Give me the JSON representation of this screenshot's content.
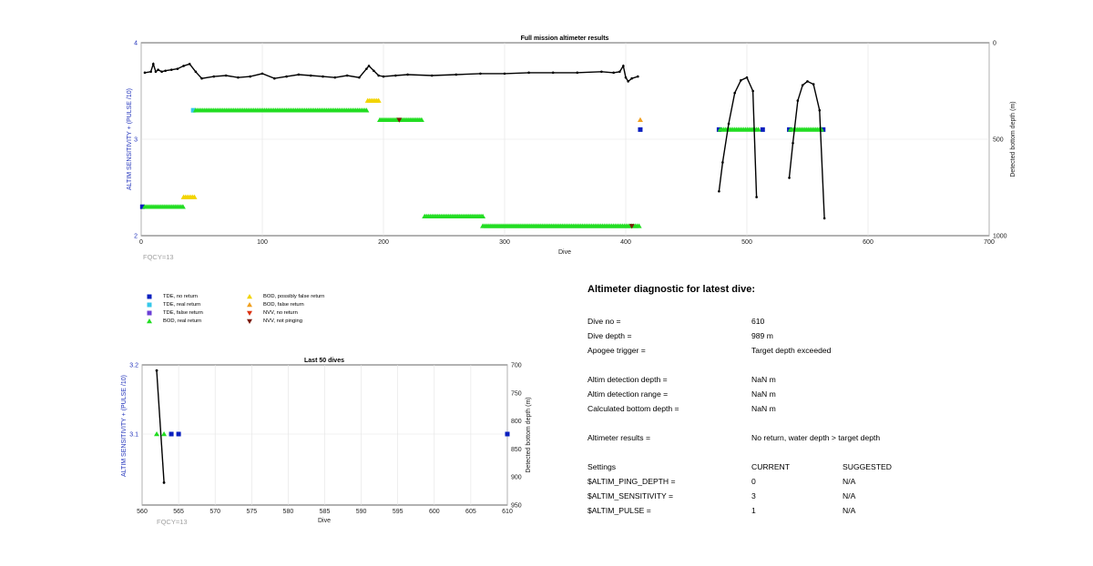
{
  "main_plot": {
    "title": "Full mission altimeter results",
    "ylabel_left": "ALTIM SENSITIVITY + (PULSE /10)",
    "ylabel_right": "Detected bottom depth (m)",
    "xlabel": "Dive",
    "x_ticks": [
      "0",
      "100",
      "200",
      "300",
      "400",
      "500",
      "600",
      "700"
    ],
    "y_left_ticks": [
      "4",
      "3",
      "2"
    ],
    "y_right_ticks": [
      "0",
      "500",
      "1000"
    ],
    "fqcy": "FQCY=13"
  },
  "last50_plot": {
    "title": "Last 50 dives",
    "ylabel_left": "ALTIM SENSITIVITY + (PULSE /10)",
    "ylabel_right": "Detected bottom depth (m)",
    "xlabel": "Dive",
    "x_ticks": [
      "560",
      "565",
      "570",
      "575",
      "580",
      "585",
      "590",
      "595",
      "600",
      "605",
      "610"
    ],
    "y_left_ticks": [
      "3.2",
      "3.1"
    ],
    "y_right_ticks": [
      "700",
      "750",
      "800",
      "850",
      "900",
      "950"
    ],
    "fqcy": "FQCY=13"
  },
  "legend": {
    "items": [
      {
        "label": "TDE, no return",
        "symbol": "square",
        "color": "#0a1fbf"
      },
      {
        "label": "TDE, real return",
        "symbol": "square",
        "color": "#36c8ea"
      },
      {
        "label": "TDE, false return",
        "symbol": "square",
        "color": "#6b3fd6"
      },
      {
        "label": "BOD, real return",
        "symbol": "triangle-up",
        "color": "#22dd22"
      },
      {
        "label": "BOD, possibly false return",
        "symbol": "triangle-up",
        "color": "#f2d400"
      },
      {
        "label": "BOD, false return",
        "symbol": "triangle-up",
        "color": "#f0a020"
      },
      {
        "label": "NVV, no return",
        "symbol": "triangle-down",
        "color": "#dd3311"
      },
      {
        "label": "NVV, not pinging",
        "symbol": "triangle-down",
        "color": "#7a1a0a"
      }
    ]
  },
  "diagnostic": {
    "title": "Altimeter diagnostic for latest dive:",
    "rows": [
      {
        "label": "Dive no =",
        "value": "610",
        "suggested": ""
      },
      {
        "label": "Dive depth =",
        "value": "989 m",
        "suggested": ""
      },
      {
        "label": "Apogee trigger =",
        "value": "Target depth exceeded",
        "suggested": ""
      },
      {
        "label": "",
        "value": "",
        "suggested": ""
      },
      {
        "label": "Altim detection depth =",
        "value": "NaN m",
        "suggested": ""
      },
      {
        "label": "Altim detection range =",
        "value": "NaN m",
        "suggested": ""
      },
      {
        "label": "Calculated bottom depth =",
        "value": "NaN m",
        "suggested": ""
      },
      {
        "label": "",
        "value": "",
        "suggested": ""
      },
      {
        "label": "Altimeter results =",
        "value": "No return, water depth > target depth",
        "suggested": ""
      },
      {
        "label": "",
        "value": "",
        "suggested": ""
      },
      {
        "label": "Settings",
        "value": "CURRENT",
        "suggested": "SUGGESTED"
      },
      {
        "label": "$ALTIM_PING_DEPTH =",
        "value": "0",
        "suggested": "N/A"
      },
      {
        "label": "$ALTIM_SENSITIVITY =",
        "value": "3",
        "suggested": "N/A"
      },
      {
        "label": "$ALTIM_PULSE =",
        "value": "1",
        "suggested": "N/A"
      }
    ]
  },
  "chart_data": [
    {
      "type": "scatter",
      "title": "Full mission altimeter results",
      "xlabel": "Dive",
      "ylabel": "ALTIM SENSITIVITY + (PULSE /10)",
      "ylabel_right": "Detected bottom depth (m)",
      "xlim": [
        0,
        700
      ],
      "ylim": [
        2,
        4
      ],
      "ylim_right": [
        0,
        1000
      ],
      "right_axis_reversed": true,
      "grid": true,
      "bottom_depth_trace": {
        "name": "Detected bottom depth (m)",
        "segments": [
          {
            "x": [
              3,
              8,
              10,
              12,
              14,
              17,
              20,
              25,
              30,
              35,
              40,
              45,
              50,
              60,
              70,
              80,
              90,
              100,
              110,
              120,
              130,
              140,
              150,
              160,
              170,
              180,
              186,
              188,
              192,
              196,
              200,
              210,
              220,
              240,
              260,
              280,
              300,
              320,
              340,
              360,
              380,
              390,
              395,
              398,
              400,
              402,
              405,
              410
            ],
            "y": [
              155,
              150,
              110,
              150,
              140,
              150,
              145,
              140,
              135,
              120,
              110,
              150,
              185,
              175,
              170,
              180,
              175,
              160,
              185,
              175,
              165,
              170,
              175,
              180,
              170,
              180,
              135,
              120,
              145,
              170,
              175,
              170,
              165,
              170,
              165,
              160,
              160,
              155,
              155,
              155,
              150,
              155,
              150,
              120,
              180,
              200,
              185,
              175
            ]
          },
          {
            "x": [
              477,
              480,
              485,
              490,
              495,
              500,
              505,
              508
            ],
            "y": [
              770,
              620,
              420,
              260,
              195,
              180,
              250,
              800
            ]
          },
          {
            "x": [
              535,
              538,
              542,
              546,
              550,
              555,
              560,
              564
            ],
            "y": [
              700,
              520,
              300,
              220,
              200,
              215,
              350,
              910
            ]
          }
        ]
      },
      "markers": [
        {
          "series": "TDE, no return",
          "x": [
            1,
            412,
            477,
            513,
            535,
            563
          ],
          "y": [
            2.3,
            3.1,
            3.1,
            3.1,
            3.1,
            3.1
          ]
        },
        {
          "series": "TDE, real return",
          "x": [
            43
          ],
          "y": [
            3.3
          ]
        },
        {
          "series": "BOD, real return",
          "segments": [
            {
              "x": [
                3,
                35
              ],
              "y": 2.3
            },
            {
              "x": [
                45,
                187
              ],
              "y": 3.3
            },
            {
              "x": [
                197,
                232
              ],
              "y": 3.2
            },
            {
              "x": [
                234,
                282
              ],
              "y": 2.2
            },
            {
              "x": [
                282,
                412
              ],
              "y": 2.1
            },
            {
              "x": [
                478,
                510
              ],
              "y": 3.1
            },
            {
              "x": [
                536,
                562
              ],
              "y": 3.1
            }
          ]
        },
        {
          "series": "BOD, possibly false return",
          "segments": [
            {
              "x": [
                35,
                44
              ],
              "y": 2.4
            },
            {
              "x": [
                187,
                196
              ],
              "y": 3.4
            }
          ]
        },
        {
          "series": "BOD, false return",
          "x": [
            412
          ],
          "y": [
            3.2
          ]
        },
        {
          "series": "NVV, not pinging",
          "x": [
            213,
            405
          ],
          "y": [
            3.2,
            2.1
          ]
        }
      ]
    },
    {
      "type": "scatter",
      "title": "Last 50 dives",
      "xlabel": "Dive",
      "ylabel": "ALTIM SENSITIVITY + (PULSE /10)",
      "ylabel_right": "Detected bottom depth (m)",
      "xlim": [
        560,
        610
      ],
      "ylim": [
        3.0,
        3.2
      ],
      "ylim_right": [
        700,
        950
      ],
      "right_axis_reversed": true,
      "grid": true,
      "bottom_depth_trace": {
        "x": [
          562,
          563
        ],
        "y": [
          710,
          910
        ]
      },
      "markers": [
        {
          "series": "BOD, real return",
          "x": [
            562,
            563
          ],
          "y": [
            3.1,
            3.1
          ]
        },
        {
          "series": "TDE, no return",
          "x": [
            564,
            565,
            610
          ],
          "y": [
            3.1,
            3.1,
            3.1
          ]
        }
      ]
    }
  ]
}
